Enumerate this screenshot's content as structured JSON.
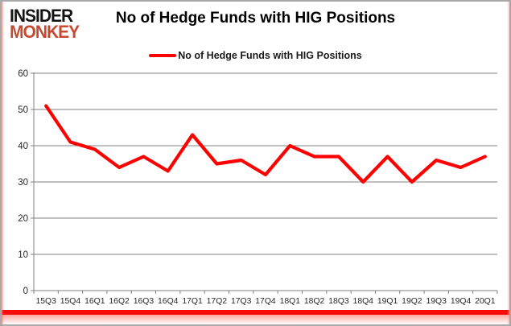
{
  "logo": {
    "line1": "INSIDER",
    "line2": "MONKEY",
    "line1_color": "#151515",
    "line2_color": "#c7492f"
  },
  "header": {
    "title": "No of Hedge Funds with HIG Positions"
  },
  "legend": {
    "label": "No of Hedge Funds with HIG Positions",
    "marker_color": "#fe0000"
  },
  "chart_data": {
    "type": "line",
    "title": "No of Hedge Funds with HIG Positions",
    "categories": [
      "15Q3",
      "15Q4",
      "16Q1",
      "16Q2",
      "16Q3",
      "16Q4",
      "17Q1",
      "17Q2",
      "17Q3",
      "17Q4",
      "18Q1",
      "18Q2",
      "18Q3",
      "18Q4",
      "19Q1",
      "19Q2",
      "19Q3",
      "19Q4",
      "20Q1"
    ],
    "series": [
      {
        "name": "No of Hedge Funds with HIG Positions",
        "color": "#fe0000",
        "values": [
          51,
          41,
          39,
          34,
          37,
          33,
          43,
          35,
          36,
          32,
          40,
          37,
          37,
          30,
          37,
          30,
          36,
          34,
          37
        ]
      }
    ],
    "xlabel": "",
    "ylabel": "",
    "ylim": [
      0,
      60
    ],
    "yticks": [
      0,
      10,
      20,
      30,
      40,
      50,
      60
    ],
    "grid": true,
    "legend_position": "top-center",
    "grid_color": "#808080",
    "axis_color": "#808080",
    "tick_label_color": "#262626"
  },
  "frame": {
    "bottom_bar_color": "#fb0b06"
  }
}
